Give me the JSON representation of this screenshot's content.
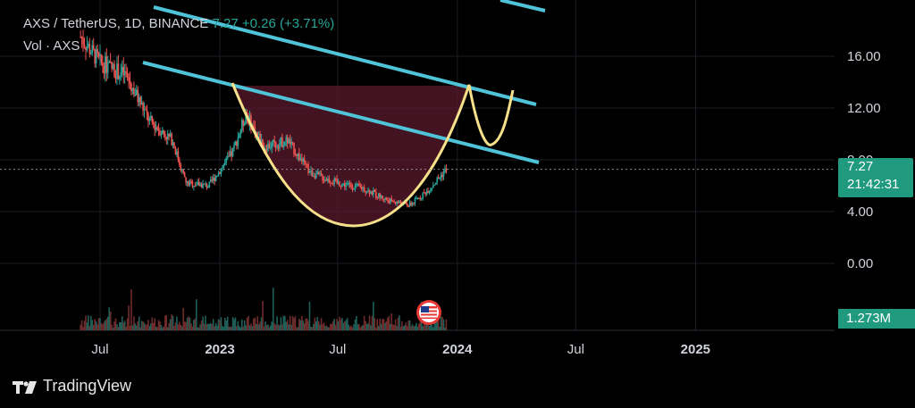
{
  "header": {
    "symbol": "AXS / TetherUS, 1D, BINANCE",
    "last_price": "7.27",
    "change": "+0.26 (+3.71%)",
    "volume_label": "Vol · AXS"
  },
  "price_tag": {
    "price": "7.27",
    "countdown": "21:42:31"
  },
  "volume_tag": "1.273M",
  "brand": "TradingView",
  "colors": {
    "background": "#000000",
    "channel": "#4fc3d8",
    "cup_line": "#f7e08a",
    "cup_fill": "#5a1a2e",
    "up": "#26a69a",
    "down": "#ef5350",
    "grid": "#1b1e24"
  },
  "chart_data": {
    "type": "line",
    "title": "AXS / TetherUS, 1D, BINANCE",
    "xlabel": "",
    "ylabel": "",
    "x_tick_labels": [
      "Jul",
      "2023",
      "Jul",
      "2024",
      "Jul",
      "2025"
    ],
    "y_tick_labels": [
      "16.00",
      "12.00",
      "8.00",
      "4.00",
      "0.00"
    ],
    "ylim": [
      -4.5,
      20.0
    ],
    "last_price": 7.27,
    "series": [
      {
        "values": [
          {
            "x": "2022-06-01",
            "y": 17.5
          },
          {
            "x": "2022-07-01",
            "y": 15.5
          },
          {
            "x": "2022-08-10",
            "y": 14.5
          },
          {
            "x": "2022-09-15",
            "y": 11.0
          },
          {
            "x": "2022-10-20",
            "y": 9.5
          },
          {
            "x": "2022-11-10",
            "y": 6.2
          },
          {
            "x": "2022-12-15",
            "y": 6.0
          },
          {
            "x": "2023-01-20",
            "y": 8.5
          },
          {
            "x": "2023-02-10",
            "y": 11.5
          },
          {
            "x": "2023-03-10",
            "y": 9.0
          },
          {
            "x": "2023-04-15",
            "y": 9.5
          },
          {
            "x": "2023-05-20",
            "y": 7.0
          },
          {
            "x": "2023-07-01",
            "y": 6.2
          },
          {
            "x": "2023-08-10",
            "y": 5.8
          },
          {
            "x": "2023-09-15",
            "y": 4.9
          },
          {
            "x": "2023-10-20",
            "y": 4.5
          },
          {
            "x": "2023-11-20",
            "y": 5.8
          },
          {
            "x": "2023-12-15",
            "y": 7.27
          }
        ]
      }
    ]
  }
}
